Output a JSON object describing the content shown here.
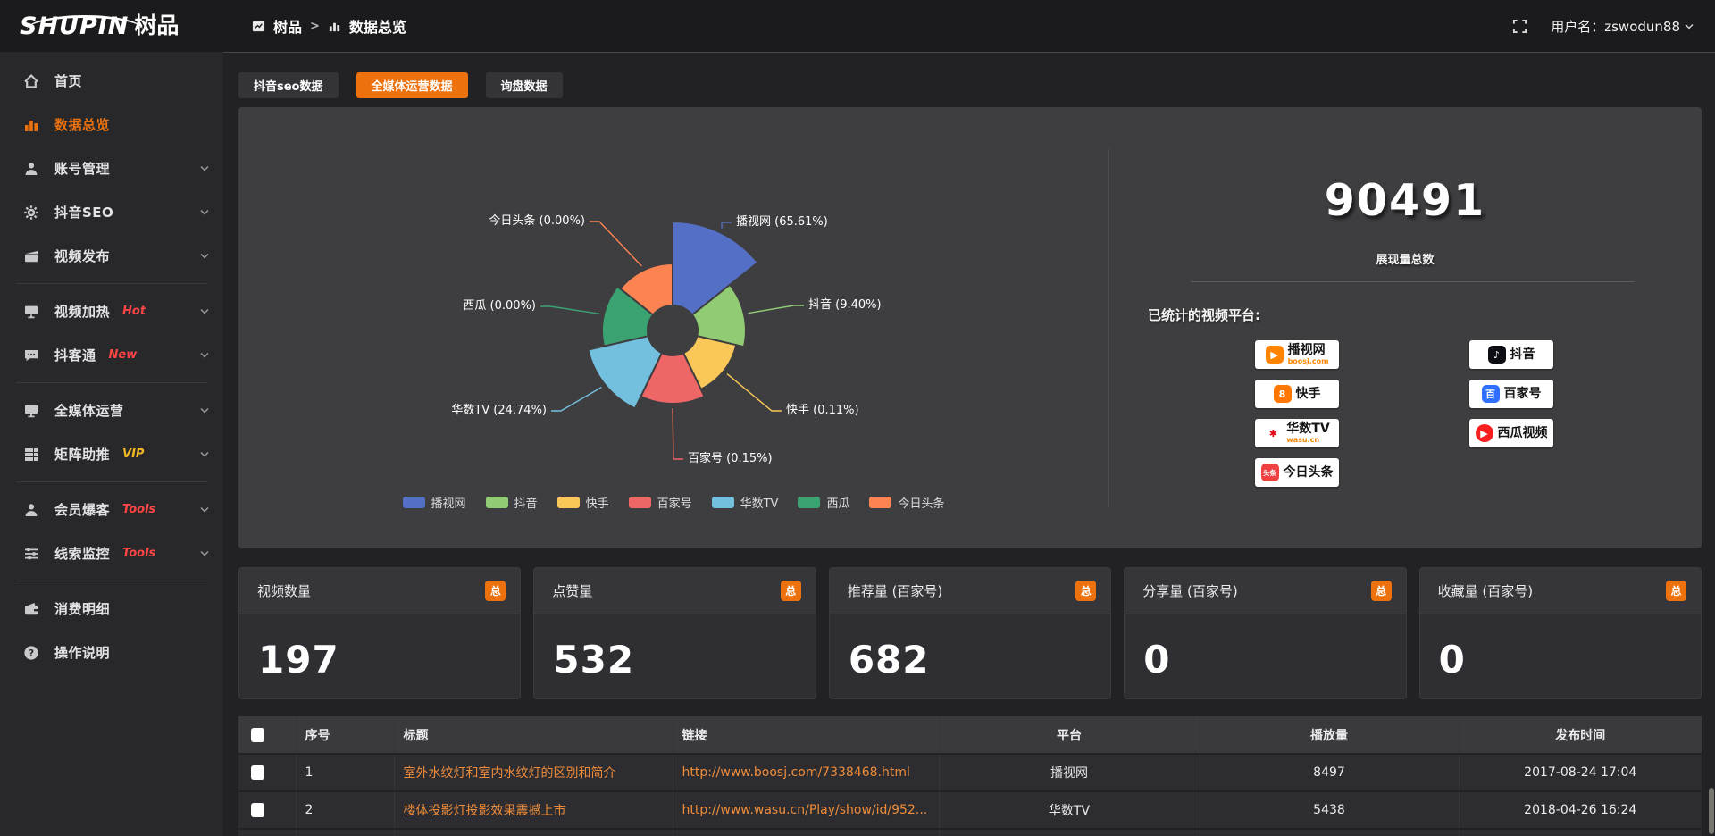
{
  "topbar": {
    "logo": "SHUPIN",
    "logo_cn": "树品",
    "breadcrumb_app": "树品",
    "breadcrumb_sep": ">",
    "breadcrumb_page": "数据总览",
    "username": "用户名：zswodun88"
  },
  "colors": {
    "accent": "#ed720e",
    "link_orange": "#ed8c3b",
    "badge_hot": "#ff4545",
    "badge_vip": "#f2b824",
    "panel_bg": "#3e3e41"
  },
  "sidebar": {
    "items": [
      {
        "id": "home",
        "icon": "home",
        "label": "首页"
      },
      {
        "id": "data-overview",
        "icon": "bars",
        "label": "数据总览",
        "active": true
      },
      {
        "id": "account-manage",
        "icon": "user",
        "label": "账号管理",
        "chevron": true
      },
      {
        "id": "douyin-seo",
        "icon": "gear",
        "label": "抖音SEO",
        "chevron": true
      },
      {
        "id": "video-publish",
        "icon": "clapper",
        "label": "视频发布",
        "chevron": true
      },
      {
        "type": "divider"
      },
      {
        "id": "video-heat",
        "icon": "monitor",
        "label": "视频加热",
        "badge": "Hot",
        "badge_color": "#ff4545",
        "chevron": true
      },
      {
        "id": "douketong",
        "icon": "chat",
        "label": "抖客通",
        "badge": "New",
        "badge_color": "#ff4545",
        "chevron": true
      },
      {
        "type": "divider"
      },
      {
        "id": "media-ops",
        "icon": "monitor",
        "label": "全媒体运营",
        "chevron": true
      },
      {
        "id": "matrix-boost",
        "icon": "grid",
        "label": "矩阵助推",
        "badge": "VIP",
        "badge_color": "#f2b824",
        "chevron": true
      },
      {
        "type": "divider"
      },
      {
        "id": "member-baoke",
        "icon": "user",
        "label": "会员爆客",
        "badge": "Tools",
        "badge_color": "#ff4545",
        "chevron": true
      },
      {
        "id": "clue-monitor",
        "icon": "sliders",
        "label": "线索监控",
        "badge": "Tools",
        "badge_color": "#ff4545",
        "chevron": true
      },
      {
        "type": "divider"
      },
      {
        "id": "consume-detail",
        "icon": "wallet",
        "label": "消费明细"
      },
      {
        "id": "help",
        "icon": "question",
        "label": "操作说明"
      }
    ]
  },
  "tabs": [
    {
      "id": "douyin-seo-data",
      "label": "抖音seo数据",
      "active": false
    },
    {
      "id": "media-ops-data",
      "label": "全媒体运营数据",
      "active": true
    },
    {
      "id": "inquiry-data",
      "label": "询盘数据",
      "active": false
    }
  ],
  "chart_data": {
    "type": "pie",
    "style": "nightingale-rose",
    "legend_position": "bottom",
    "center": [
      486,
      250
    ],
    "inner_radius": 28,
    "series": [
      {
        "name": "播视网",
        "percent": "65.61%",
        "color": "#5470c6",
        "radius": 122,
        "label_pos": {
          "x": 557,
          "y": 129,
          "align": "left"
        }
      },
      {
        "name": "抖音",
        "percent": "9.40%",
        "color": "#91cc75",
        "radius": 82,
        "label_pos": {
          "x": 638,
          "y": 222,
          "align": "left"
        }
      },
      {
        "name": "快手",
        "percent": "0.11%",
        "color": "#fac858",
        "radius": 73,
        "label_pos": {
          "x": 613,
          "y": 340,
          "align": "left"
        }
      },
      {
        "name": "百家号",
        "percent": "0.15%",
        "color": "#ee6666",
        "radius": 82,
        "label_pos": {
          "x": 503,
          "y": 394,
          "align": "left"
        }
      },
      {
        "name": "华数TV",
        "percent": "24.74%",
        "color": "#73c0de",
        "radius": 97,
        "label_pos": {
          "x": 345,
          "y": 340,
          "align": "right"
        }
      },
      {
        "name": "西瓜",
        "percent": "0.00%",
        "color": "#3ba272",
        "radius": 79,
        "label_pos": {
          "x": 333,
          "y": 223,
          "align": "right"
        }
      },
      {
        "name": "今日头条",
        "percent": "0.00%",
        "color": "#fc8452",
        "radius": 75,
        "label_pos": {
          "x": 388,
          "y": 128,
          "align": "right"
        }
      }
    ]
  },
  "summary": {
    "total": "90491",
    "total_label": "展现量总数",
    "platforms_title": "已统计的视频平台:",
    "platforms_left": [
      {
        "name": "播视网",
        "sub": "boosj.com",
        "sub_color": "#ff8400",
        "glyph": "▶",
        "glyph_bg": "#ff8400",
        "glyph_shape": "rounded"
      },
      {
        "name": "快手",
        "glyph": "8",
        "glyph_bg": "#ff7600",
        "glyph_shape": "rounded"
      },
      {
        "name": "华数TV",
        "sub": "wasu.cn",
        "sub_color": "#f08300",
        "glyph": "✱",
        "glyph_bg": "#ffffff",
        "glyph_color": "#e60012",
        "glyph_shape": "rounded"
      },
      {
        "name": "今日头条",
        "glyph": "头条",
        "glyph_bg": "#f04142",
        "glyph_shape": "rounded",
        "glyph_small": true
      }
    ],
    "platforms_right": [
      {
        "name": "抖音",
        "glyph": "♪",
        "glyph_bg": "#0d0d14",
        "glyph_shape": "rounded"
      },
      {
        "name": "百家号",
        "glyph": "百",
        "glyph_bg": "#306eff",
        "glyph_shape": "rounded"
      },
      {
        "name": "西瓜视频",
        "glyph": "▶",
        "glyph_bg": "#fa1f1f",
        "glyph_shape": "round"
      }
    ]
  },
  "stat_cards": [
    {
      "label": "视频数量",
      "badge": "总",
      "value": "197"
    },
    {
      "label": "点赞量",
      "badge": "总",
      "value": "532"
    },
    {
      "label": "推荐量 (百家号)",
      "badge": "总",
      "value": "682"
    },
    {
      "label": "分享量 (百家号)",
      "badge": "总",
      "value": "0"
    },
    {
      "label": "收藏量 (百家号)",
      "badge": "总",
      "value": "0"
    }
  ],
  "table": {
    "headers": [
      "序号",
      "标题",
      "链接",
      "平台",
      "播放量",
      "发布时间"
    ],
    "rows": [
      {
        "no": "1",
        "title": "室外水纹灯和室内水纹灯的区别和简介",
        "link": "http://www.boosj.com/7338468.html",
        "platform": "播视网",
        "plays": "8497",
        "time": "2017-08-24 17:04"
      },
      {
        "no": "2",
        "title": "楼体投影灯投影效果震撼上市",
        "link": "http://www.wasu.cn/Play/show/id/952...",
        "platform": "华数TV",
        "plays": "5438",
        "time": "2018-04-26 16:24"
      }
    ]
  }
}
